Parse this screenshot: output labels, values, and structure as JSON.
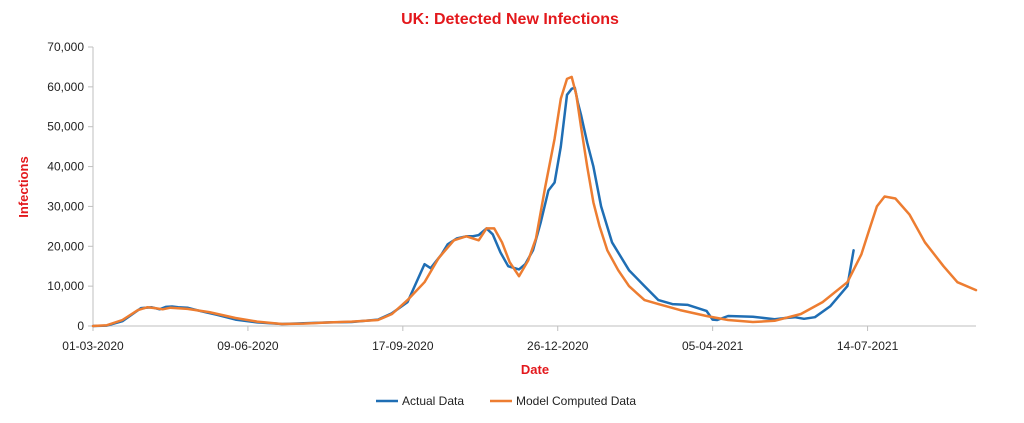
{
  "chart_data": {
    "type": "line",
    "title": "UK: Detected New Infections",
    "xlabel": "Date",
    "ylabel": "Infections",
    "title_color": "#e3181c",
    "axis_title_color": "#e3181c",
    "xlim": [
      "01-03-2020",
      "22-09-2021"
    ],
    "ylim": [
      0,
      70000
    ],
    "y_ticks": [
      0,
      10000,
      20000,
      30000,
      40000,
      50000,
      60000,
      70000
    ],
    "y_tick_labels": [
      "0",
      "10,000",
      "20,000",
      "30,000",
      "40,000",
      "50,000",
      "60,000",
      "70,000"
    ],
    "x_ticks": [
      "01-03-2020",
      "09-06-2020",
      "17-09-2020",
      "26-12-2020",
      "05-04-2021",
      "14-07-2021"
    ],
    "grid": false,
    "legend_position": "bottom",
    "series": [
      {
        "name": "Actual Data",
        "color": "#1f6eb4",
        "x": [
          "01-03-2020",
          "10-03-2020",
          "20-03-2020",
          "01-04-2020",
          "08-04-2020",
          "13-04-2020",
          "17-04-2020",
          "21-04-2020",
          "25-04-2020",
          "01-05-2020",
          "05-05-2020",
          "10-05-2020",
          "20-05-2020",
          "01-06-2020",
          "15-06-2020",
          "01-07-2020",
          "15-07-2020",
          "01-08-2020",
          "15-08-2020",
          "01-09-2020",
          "10-09-2020",
          "20-09-2020",
          "01-10-2020",
          "05-10-2020",
          "08-10-2020",
          "12-10-2020",
          "16-10-2020",
          "22-10-2020",
          "28-10-2020",
          "01-11-2020",
          "05-11-2020",
          "10-11-2020",
          "14-11-2020",
          "19-11-2020",
          "24-11-2020",
          "01-12-2020",
          "05-12-2020",
          "10-12-2020",
          "15-12-2020",
          "20-12-2020",
          "24-12-2020",
          "28-12-2020",
          "01-01-2021",
          "04-01-2021",
          "06-01-2021",
          "08-01-2021",
          "10-01-2021",
          "14-01-2021",
          "18-01-2021",
          "23-01-2021",
          "30-01-2021",
          "10-02-2021",
          "20-02-2021",
          "01-03-2021",
          "10-03-2021",
          "20-03-2021",
          "01-04-2021",
          "05-04-2021",
          "08-04-2021",
          "15-04-2021",
          "01-05-2021",
          "15-05-2021",
          "22-05-2021",
          "28-05-2021",
          "03-06-2021",
          "10-06-2021",
          "20-06-2021",
          "01-07-2021",
          "05-07-2021"
        ],
        "y": [
          0,
          100,
          1200,
          4500,
          4700,
          4200,
          4800,
          4900,
          4700,
          4600,
          4200,
          3700,
          2800,
          1600,
          900,
          500,
          700,
          900,
          1000,
          1600,
          3200,
          6000,
          15500,
          14500,
          16000,
          18000,
          20500,
          22000,
          22500,
          22500,
          22800,
          24500,
          23000,
          18500,
          15000,
          14200,
          15500,
          19000,
          26000,
          34000,
          36000,
          45000,
          58000,
          59500,
          59800,
          56000,
          53000,
          46000,
          40000,
          30000,
          21000,
          14000,
          10000,
          6500,
          5500,
          5300,
          3800,
          1600,
          1500,
          2500,
          2300,
          1700,
          2000,
          2200,
          1800,
          2200,
          5000,
          10000,
          19000
        ]
      },
      {
        "name": "Model Computed Data",
        "color": "#ed7d31",
        "x": [
          "01-03-2020",
          "10-03-2020",
          "20-03-2020",
          "30-03-2020",
          "05-04-2020",
          "10-04-2020",
          "15-04-2020",
          "20-04-2020",
          "01-05-2020",
          "15-05-2020",
          "01-06-2020",
          "15-06-2020",
          "01-07-2020",
          "15-07-2020",
          "01-08-2020",
          "15-08-2020",
          "01-09-2020",
          "10-09-2020",
          "20-09-2020",
          "01-10-2020",
          "10-10-2020",
          "20-10-2020",
          "28-10-2020",
          "05-11-2020",
          "10-11-2020",
          "15-11-2020",
          "20-11-2020",
          "25-11-2020",
          "01-12-2020",
          "07-12-2020",
          "12-12-2020",
          "18-12-2020",
          "24-12-2020",
          "28-12-2020",
          "01-01-2021",
          "04-01-2021",
          "07-01-2021",
          "10-01-2021",
          "14-01-2021",
          "18-01-2021",
          "22-01-2021",
          "27-01-2021",
          "03-02-2021",
          "10-02-2021",
          "20-02-2021",
          "01-03-2021",
          "15-03-2021",
          "01-04-2021",
          "15-04-2021",
          "01-05-2021",
          "15-05-2021",
          "01-06-2021",
          "15-06-2021",
          "01-07-2021",
          "10-07-2021",
          "15-07-2021",
          "20-07-2021",
          "25-07-2021",
          "01-08-2021",
          "10-08-2021",
          "20-08-2021",
          "01-09-2021",
          "10-09-2021",
          "22-09-2021"
        ],
        "y": [
          0,
          200,
          1500,
          4000,
          4700,
          4500,
          4200,
          4600,
          4300,
          3500,
          2000,
          1100,
          500,
          600,
          900,
          1100,
          1500,
          3000,
          6500,
          11000,
          17000,
          21500,
          22500,
          21500,
          24500,
          24500,
          21000,
          16000,
          12500,
          16500,
          22000,
          35000,
          47000,
          57000,
          62000,
          62500,
          58000,
          50000,
          40000,
          31000,
          25000,
          19000,
          14000,
          10000,
          6500,
          5500,
          4000,
          2500,
          1500,
          1000,
          1300,
          3000,
          6000,
          11000,
          18000,
          24000,
          30000,
          32500,
          32000,
          28000,
          21000,
          15000,
          11000,
          9000
        ]
      }
    ]
  }
}
